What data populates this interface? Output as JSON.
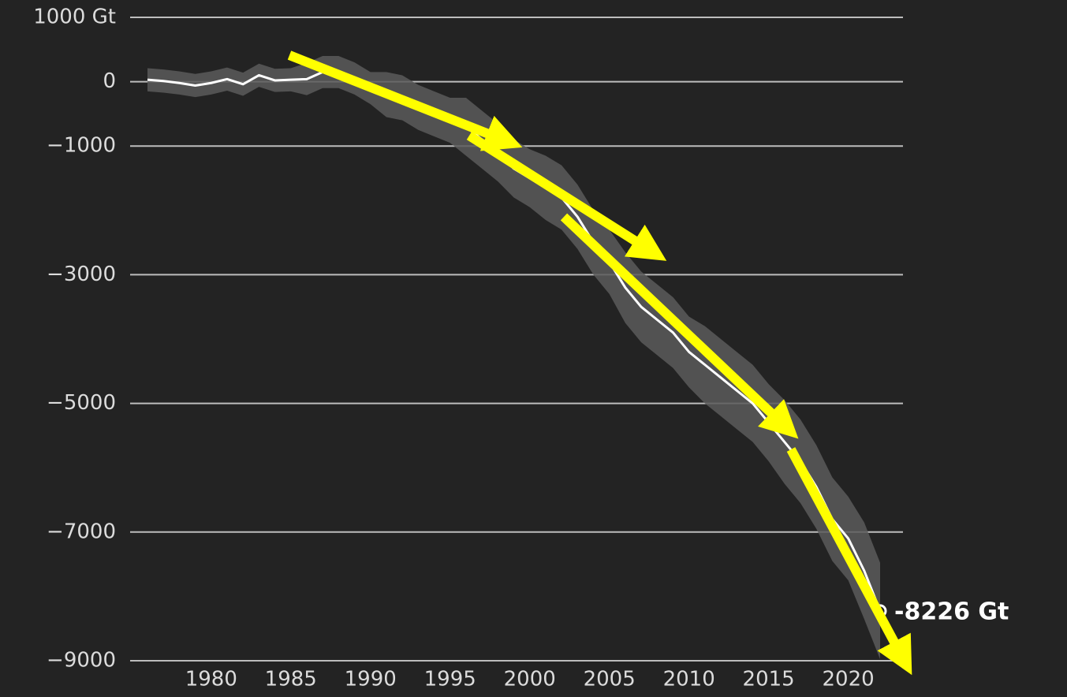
{
  "chart_data": {
    "type": "line",
    "x": [
      1976,
      1977,
      1978,
      1979,
      1980,
      1981,
      1982,
      1983,
      1984,
      1985,
      1986,
      1987,
      1988,
      1989,
      1990,
      1991,
      1992,
      1993,
      1994,
      1995,
      1996,
      1997,
      1998,
      1999,
      2000,
      2001,
      2002,
      2003,
      2004,
      2005,
      2006,
      2007,
      2008,
      2009,
      2010,
      2011,
      2012,
      2013,
      2014,
      2015,
      2016,
      2017,
      2018,
      2019,
      2020,
      2021,
      2022
    ],
    "values": [
      30,
      10,
      -20,
      -60,
      -20,
      40,
      -40,
      100,
      20,
      30,
      40,
      150,
      150,
      50,
      -100,
      -200,
      -250,
      -400,
      -500,
      -600,
      -700,
      -900,
      -1100,
      -1350,
      -1500,
      -1650,
      -1800,
      -2100,
      -2500,
      -2800,
      -3200,
      -3500,
      -3700,
      -3900,
      -4200,
      -4400,
      -4600,
      -4800,
      -5000,
      -5300,
      -5600,
      -5900,
      -6300,
      -6800,
      -7100,
      -7600,
      -8226
    ],
    "band": {
      "upper": [
        210,
        190,
        160,
        120,
        160,
        220,
        140,
        280,
        200,
        210,
        290,
        400,
        400,
        300,
        150,
        150,
        100,
        -50,
        -150,
        -250,
        -250,
        -450,
        -650,
        -900,
        -1050,
        -1150,
        -1300,
        -1600,
        -2000,
        -2300,
        -2650,
        -2950,
        -3150,
        -3350,
        -3650,
        -3800,
        -4000,
        -4200,
        -4400,
        -4700,
        -4950,
        -5250,
        -5650,
        -6150,
        -6450,
        -6850,
        -7476
      ],
      "lower": [
        -150,
        -170,
        -200,
        -240,
        -200,
        -140,
        -220,
        -80,
        -160,
        -150,
        -210,
        -100,
        -100,
        -200,
        -350,
        -550,
        -600,
        -750,
        -850,
        -950,
        -1150,
        -1350,
        -1550,
        -1800,
        -1950,
        -2150,
        -2300,
        -2600,
        -3000,
        -3300,
        -3750,
        -4050,
        -4250,
        -4450,
        -4750,
        -5000,
        -5200,
        -5400,
        -5600,
        -5900,
        -6250,
        -6550,
        -6950,
        -7450,
        -7750,
        -8350,
        -8976
      ],
      "color": "#5a5a5a"
    },
    "color": "#ffffff",
    "annotations": [
      {
        "text": "-8226 Gt"
      }
    ],
    "xlim": [
      1976,
      2022
    ],
    "xticks": [
      1980,
      1985,
      1990,
      1995,
      2000,
      2005,
      2010,
      2015,
      2020
    ],
    "ylim": [
      -9000,
      1000
    ],
    "yticks": [
      {
        "value": 1000,
        "label": "1000 Gt"
      },
      0,
      {
        "value": -1000,
        "label": "−1000"
      },
      {
        "value": -3000,
        "label": "−3000"
      },
      {
        "value": -5000,
        "label": "−5000"
      },
      {
        "value": -7000,
        "label": "−7000"
      },
      {
        "value": -9000,
        "label": "−9000"
      }
    ],
    "grid": true
  }
}
